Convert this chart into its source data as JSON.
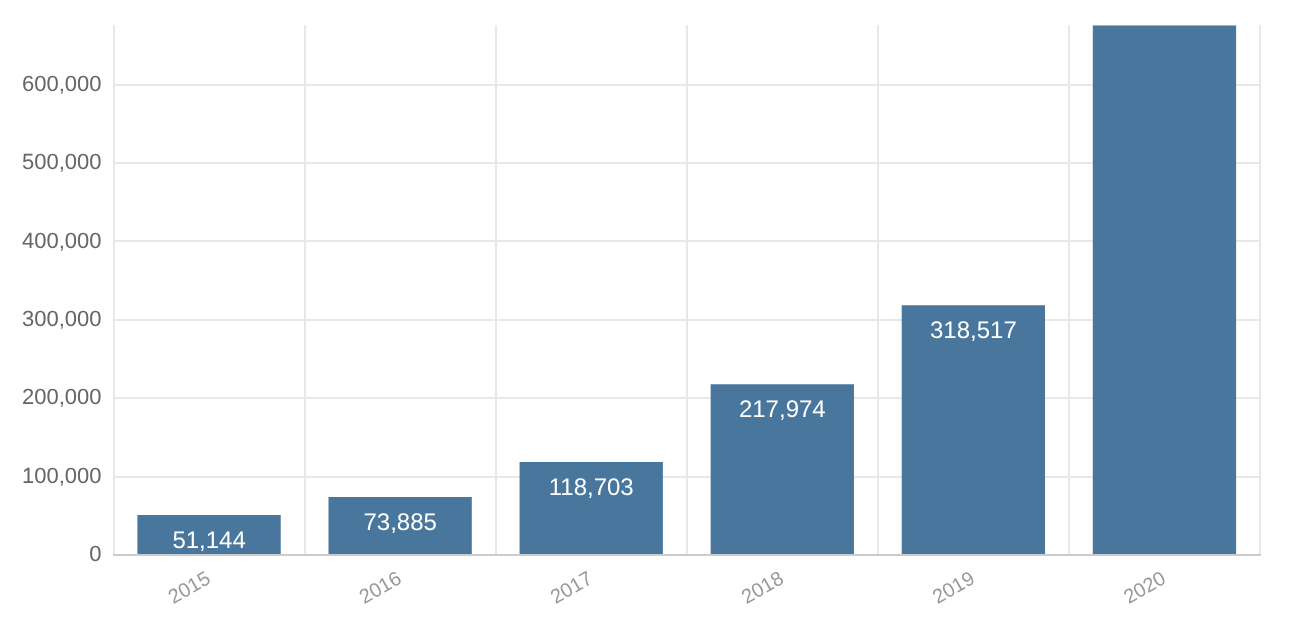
{
  "chart_data": {
    "type": "bar",
    "categories": [
      "2015",
      "2016",
      "2017",
      "2018",
      "2019",
      "2020"
    ],
    "values": [
      51144,
      73885,
      118703,
      217974,
      318517,
      676000
    ],
    "value_labels": [
      "51,144",
      "73,885",
      "118,703",
      "217,974",
      "318,517",
      null
    ],
    "color": "#48769c",
    "ylim": [
      0,
      676000
    ],
    "yticks": [
      0,
      {
        "value": 100000,
        "label": "100,000"
      },
      {
        "value": 200000,
        "label": "200,000"
      },
      {
        "value": 300000,
        "label": "300,000"
      },
      {
        "value": 400000,
        "label": "400,000"
      },
      {
        "value": 500000,
        "label": "500,000"
      },
      {
        "value": 600000,
        "label": "600,000"
      }
    ],
    "grid": true
  }
}
